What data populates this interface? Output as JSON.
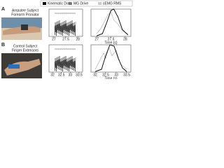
{
  "legend": [
    "Kinematic Data",
    "MG Drive",
    "sEMG RMS"
  ],
  "panels": [
    {
      "label": "A",
      "title": [
        "Amputee Subject",
        "Forearm Pronator"
      ],
      "raw": {
        "xlim": [
          26.8,
          28.2
        ],
        "xticks": [
          27,
          27.5,
          28
        ]
      },
      "profile": {
        "xlim": [
          26.8,
          28.2
        ],
        "xticks": [
          27,
          27.5,
          28
        ],
        "ylim": [
          0,
          1
        ],
        "xlabel": "Time (s)",
        "kinematic": {
          "x": [
            27,
            27.2,
            27.35,
            27.5,
            27.6,
            27.75,
            27.9,
            28.1
          ],
          "y": [
            0.02,
            0.1,
            0.5,
            0.95,
            1,
            0.7,
            0.25,
            0.05
          ]
        },
        "rms": {
          "x": [
            27,
            27.15,
            27.3,
            27.4,
            27.5,
            27.6,
            27.75,
            27.9,
            28.1
          ],
          "y": [
            0.1,
            0.3,
            0.6,
            0.8,
            0.9,
            0.6,
            0.45,
            0.2,
            0.1
          ]
        }
      }
    },
    {
      "label": "B",
      "title": [
        "Control Subject",
        "Finger Extensors"
      ],
      "raw": {
        "xlim": [
          31.8,
          33.7
        ],
        "xticks": [
          32,
          32.5,
          33,
          33.5
        ]
      },
      "profile": {
        "xlim": [
          31.8,
          33.7
        ],
        "xticks": [
          32,
          32.5,
          33,
          33.5
        ],
        "ylim": [
          0,
          1
        ],
        "xlabel": "Time (s)",
        "kinematic": {
          "x": [
            32,
            32.3,
            32.5,
            32.7,
            32.9,
            33.1,
            33.3,
            33.5
          ],
          "y": [
            0.02,
            0.1,
            0.6,
            1,
            0.95,
            0.5,
            0.15,
            0.02
          ]
        },
        "rms": {
          "x": [
            32,
            32.2,
            32.4,
            32.5,
            32.65,
            32.8,
            33,
            33.2,
            33.5
          ],
          "y": [
            0.1,
            0.4,
            0.7,
            0.5,
            0.9,
            0.6,
            0.8,
            0.3,
            0.1
          ]
        }
      }
    }
  ]
}
